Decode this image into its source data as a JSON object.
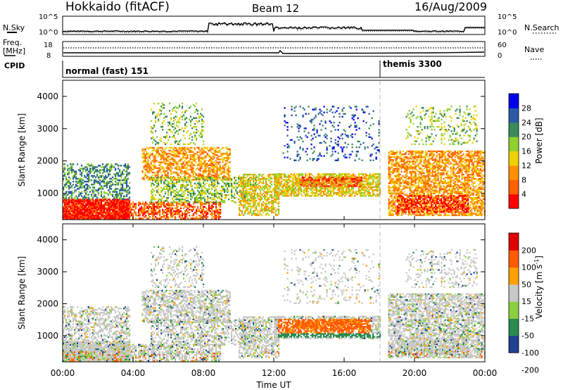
{
  "header": {
    "station": "Hokkaido (fitACF)",
    "beam": "Beam 12",
    "date": "16/Aug/2009"
  },
  "noise_panel": {
    "left_label": "N.Sky",
    "right_label": "N.Search",
    "left_ticks": [
      "10^5",
      "10^0"
    ],
    "right_ticks": [
      "10^5",
      "10^0"
    ]
  },
  "freq_panel": {
    "left_label_line1": "Freq.",
    "left_label_line2": "[MHz]",
    "left_ticks": [
      "18",
      "8"
    ],
    "right_ticks": [
      "60",
      "0"
    ],
    "right_label": "Nave"
  },
  "cpid_panel": {
    "label": "CPID",
    "modes": [
      {
        "name": "normal (fast) 151",
        "start": "00:00"
      },
      {
        "name": "themis 3300",
        "start": "18:00"
      }
    ]
  },
  "x_axis": {
    "title": "Time UT",
    "ticks": [
      "00:00",
      "04:00",
      "08:00",
      "12:00",
      "16:00",
      "20:00",
      "00:00"
    ]
  },
  "colors": {
    "power": [
      "#0000ee",
      "#2a5aa8",
      "#3a8a5a",
      "#8fd030",
      "#f0d000",
      "#ff9000",
      "#ff6000",
      "#ff0000"
    ],
    "velocity": [
      "#e00000",
      "#ff5a00",
      "#ffa000",
      "#c8c8c8",
      "#8cd040",
      "#2a8a50",
      "#204090"
    ]
  },
  "chart_data": [
    {
      "type": "heatmap",
      "title": "Power",
      "ylabel": "Slant Range [km]",
      "xlabel": "",
      "ylim": [
        180,
        4500
      ],
      "y_ticks": [
        "1000",
        "2000",
        "3000",
        "4000"
      ],
      "colorbar_label": "Power [dB]",
      "colorbar_ticks": [
        "4",
        "8",
        "12",
        "16",
        "20",
        "24",
        "28"
      ]
    },
    {
      "type": "heatmap",
      "title": "Velocity",
      "ylabel": "Slant Range [km]",
      "xlabel": "Time UT",
      "ylim": [
        180,
        4500
      ],
      "y_ticks": [
        "1000",
        "2000",
        "3000",
        "4000"
      ],
      "colorbar_label": "Velocity [m s",
      "colorbar_label_sup": "-1",
      "colorbar_ticks": [
        "200",
        "100",
        "50",
        "15",
        "-15",
        "-50",
        "-100",
        "-200"
      ]
    }
  ]
}
